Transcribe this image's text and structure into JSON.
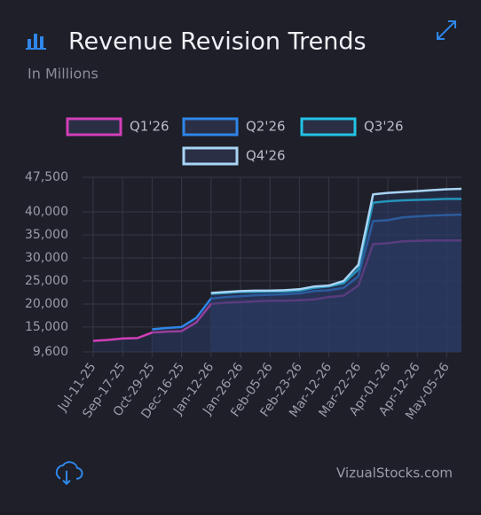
{
  "chart_data": {
    "type": "area",
    "title": "Revenue Revision Trends",
    "subtitle": "In Millions",
    "footer": "VizualStocks.com",
    "categories": [
      "Jul-11-25",
      null,
      "Sep-17-25",
      null,
      "Oct-29-25",
      null,
      "Dec-16-25",
      null,
      "Jan-12-26",
      null,
      "Jan-26-26",
      null,
      "Feb-05-26",
      null,
      "Feb-23-26",
      null,
      "Mar-12-26",
      null,
      "Mar-22-26",
      null,
      "Apr-01-26",
      null,
      "Apr-12-26",
      null,
      "May-05-26",
      null
    ],
    "series": [
      {
        "name": "Q1'26",
        "color": "#d23fb9",
        "values": [
          12000,
          12200,
          12500,
          12600,
          13800,
          14000,
          14100,
          16000,
          20000,
          20300,
          20400,
          20600,
          20700,
          20700,
          20800,
          21000,
          21500,
          21800,
          24000,
          33000,
          33200,
          33600,
          33700,
          33800,
          33800,
          33800
        ]
      },
      {
        "name": "Q2'26",
        "color": "#2f86e8",
        "values": [
          null,
          null,
          null,
          null,
          14500,
          14800,
          15000,
          17000,
          21200,
          21500,
          21700,
          21900,
          22000,
          22100,
          22300,
          22800,
          23000,
          23500,
          26000,
          38000,
          38200,
          38800,
          39000,
          39200,
          39300,
          39400
        ]
      },
      {
        "name": "Q3'26",
        "color": "#22c3e6",
        "values": [
          null,
          null,
          null,
          null,
          null,
          null,
          null,
          null,
          22200,
          22400,
          22600,
          22600,
          22700,
          22700,
          22900,
          23500,
          23800,
          24500,
          27500,
          42000,
          42300,
          42500,
          42600,
          42700,
          42800,
          42800
        ]
      },
      {
        "name": "Q4'26",
        "color": "#a9d4f5",
        "values": [
          null,
          null,
          null,
          null,
          null,
          null,
          null,
          null,
          22400,
          22600,
          22800,
          22900,
          22900,
          23000,
          23200,
          23800,
          24000,
          25000,
          28500,
          43800,
          44100,
          44300,
          44500,
          44700,
          44900,
          45000
        ]
      }
    ],
    "ylim": [
      9600,
      47500
    ],
    "yticks": [
      {
        "value": 9600,
        "label": "9,600"
      },
      {
        "value": 15000,
        "label": "15,000"
      },
      {
        "value": 20000,
        "label": "20,000"
      },
      {
        "value": 25000,
        "label": "25,000"
      },
      {
        "value": 30000,
        "label": "30,000"
      },
      {
        "value": 35000,
        "label": "35,000"
      },
      {
        "value": 40000,
        "label": "40,000"
      },
      {
        "value": 47500,
        "label": "47,500"
      }
    ],
    "grid": true,
    "legend": "top"
  }
}
